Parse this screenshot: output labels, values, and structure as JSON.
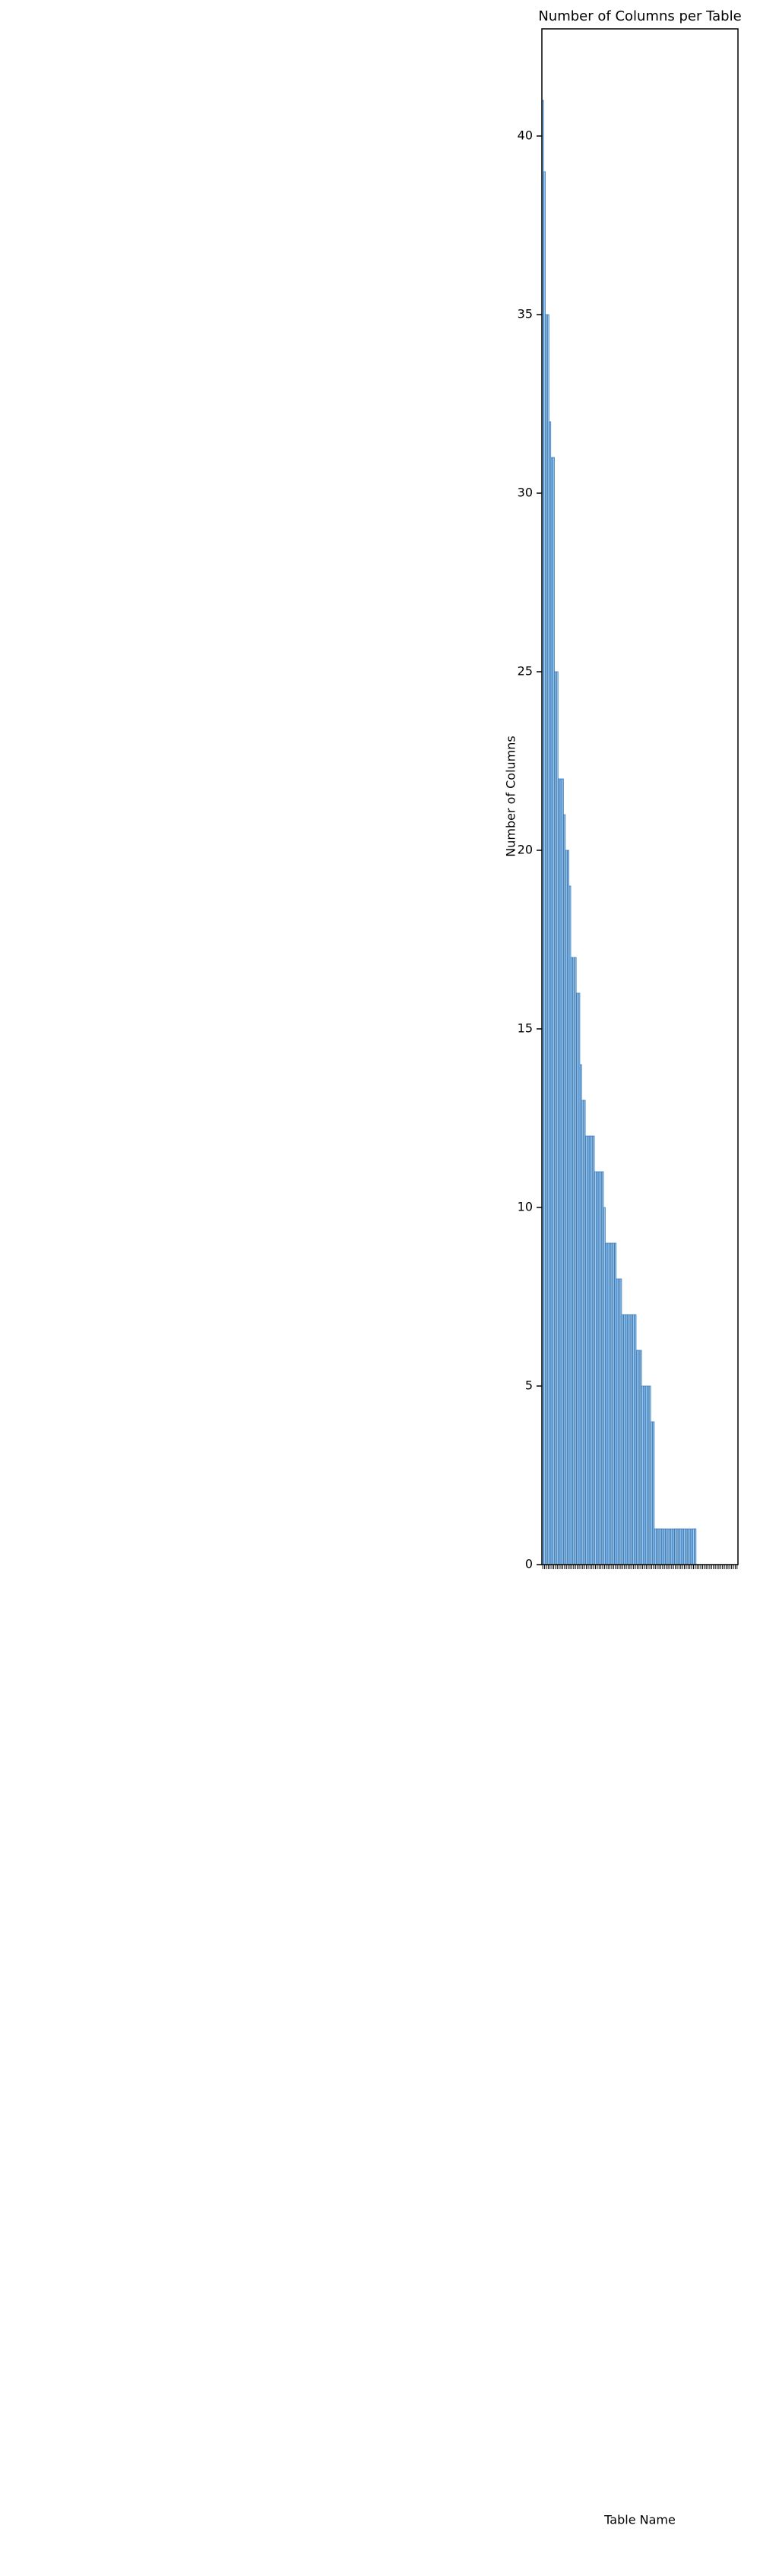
{
  "chart_data": {
    "type": "bar",
    "title": "Number of Columns per Table",
    "xlabel": "Table Name",
    "ylabel": "Number of Columns",
    "categories": [
      null,
      null,
      null,
      null,
      null,
      null,
      null,
      null,
      null,
      null,
      null,
      null,
      null,
      null,
      null,
      null,
      null,
      null,
      null,
      null,
      null,
      null,
      null,
      null,
      null,
      null,
      null,
      null,
      null,
      null,
      null,
      null,
      null,
      null,
      null,
      null,
      null,
      null,
      null,
      null,
      null,
      null,
      null,
      null,
      null,
      null,
      null,
      null,
      null,
      null,
      null,
      null,
      null,
      null,
      null,
      null,
      null,
      null,
      null,
      null,
      null,
      null,
      null,
      null,
      null,
      null,
      null,
      null,
      null,
      null,
      null,
      null,
      null,
      null,
      null,
      null,
      null,
      null,
      null,
      null,
      null,
      null,
      null,
      null,
      null,
      null,
      null,
      null,
      null,
      null,
      null,
      null,
      null,
      null,
      null,
      null,
      null,
      null,
      null,
      null,
      null,
      null,
      null,
      null,
      null,
      null,
      null,
      null
    ],
    "values": [
      41,
      39,
      35,
      35,
      32,
      31,
      31,
      25,
      25,
      22,
      22,
      22,
      21,
      20,
      20,
      19,
      17,
      17,
      17,
      16,
      16,
      14,
      13,
      13,
      12,
      12,
      12,
      12,
      12,
      11,
      11,
      11,
      11,
      11,
      10,
      9,
      9,
      9,
      9,
      9,
      9,
      8,
      8,
      8,
      7,
      7,
      7,
      7,
      7,
      7,
      7,
      7,
      6,
      6,
      6,
      5,
      5,
      5,
      5,
      5,
      4,
      4,
      1,
      1,
      1,
      1,
      1,
      1,
      1,
      1,
      1,
      1,
      1,
      1,
      1,
      1,
      1,
      1,
      1,
      1,
      1,
      1,
      1,
      1,
      1,
      0,
      0,
      0,
      0,
      0,
      0,
      0,
      0,
      0,
      0,
      0,
      0,
      0,
      0,
      0,
      0,
      0,
      0,
      0,
      0,
      0,
      0,
      0
    ],
    "color": "#a6cbe6",
    "edgecolor": "#3b7dbf",
    "ylim": [
      0,
      43
    ],
    "yticks": [
      0,
      5,
      10,
      15,
      20,
      25,
      30,
      35,
      40
    ],
    "grid": false
  }
}
